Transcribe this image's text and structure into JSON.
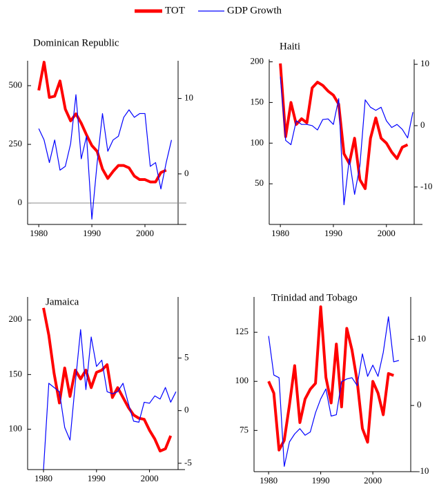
{
  "chart_data": [
    {
      "type": "line",
      "title": "Dominican Republic",
      "zero_line": true,
      "x": [
        1980,
        1981,
        1982,
        1983,
        1984,
        1985,
        1986,
        1987,
        1988,
        1989,
        1990,
        1991,
        1992,
        1993,
        1994,
        1995,
        1996,
        1997,
        1998,
        1999,
        2000,
        2001,
        2002,
        2003,
        2004,
        2005
      ],
      "series": [
        {
          "name": "TOT",
          "color": "#ff0000",
          "values": [
            480,
            600,
            450,
            455,
            520,
            400,
            350,
            380,
            340,
            290,
            245,
            220,
            145,
            105,
            135,
            160,
            160,
            150,
            115,
            100,
            100,
            90,
            90,
            130,
            140,
            null
          ]
        },
        {
          "name": "GDP Growth",
          "color": "#0000ff",
          "axis": "y2",
          "values": [
            6,
            4.5,
            1.5,
            4.5,
            0.5,
            1,
            4,
            10.5,
            2,
            5,
            -6,
            1.5,
            8,
            3,
            4.5,
            5,
            7.5,
            8.5,
            7.5,
            8,
            8,
            1,
            1.5,
            -2,
            1.5,
            4.5
          ]
        }
      ],
      "xlim": [
        1977.9,
        2007.8
      ],
      "xticks": [
        1980,
        1990,
        2000
      ],
      "ylim": [
        -91,
        606
      ],
      "yticks": [
        0,
        250,
        500
      ],
      "y2lim": [
        -6.7,
        15
      ],
      "y2ticks": [
        0,
        10
      ]
    },
    {
      "type": "line",
      "title": "Haiti",
      "x": [
        1980,
        1981,
        1982,
        1983,
        1984,
        1985,
        1986,
        1987,
        1988,
        1989,
        1990,
        1991,
        1992,
        1993,
        1994,
        1995,
        1996,
        1997,
        1998,
        1999,
        2000,
        2001,
        2002,
        2003,
        2004,
        2005
      ],
      "series": [
        {
          "color": "#ff0000",
          "values": [
            198,
            108,
            150,
            123,
            130,
            125,
            168,
            175,
            171,
            164,
            159,
            148,
            87,
            75,
            106,
            55,
            44,
            106,
            131,
            106,
            100,
            89,
            81,
            95,
            98,
            null
          ]
        },
        {
          "color": "#0000ff",
          "axis": "y2",
          "values": [
            8,
            -2.4,
            -3.1,
            0.8,
            0.2,
            0.2,
            0,
            -0.7,
            1,
            1.1,
            0.2,
            4.4,
            -12.9,
            -5.4,
            -11.2,
            -6.5,
            4.2,
            3,
            2.5,
            3,
            0.8,
            -0.3,
            0.2,
            -0.6,
            -2,
            2.2
          ]
        }
      ],
      "xlim": [
        1977.9,
        2006.8
      ],
      "xticks": [
        1980,
        1990,
        2000
      ],
      "ylim": [
        0,
        203
      ],
      "yticks": [
        50,
        100,
        150,
        200
      ],
      "y2lim": [
        -16.1,
        10.8
      ],
      "y2ticks": [
        -10,
        0,
        10
      ]
    },
    {
      "type": "line",
      "title": "Jamaica",
      "x": [
        1980,
        1981,
        1982,
        1983,
        1984,
        1985,
        1986,
        1987,
        1988,
        1989,
        1990,
        1991,
        1992,
        1993,
        1994,
        1995,
        1996,
        1997,
        1998,
        1999,
        2000,
        2001,
        2002,
        2003,
        2004,
        2005
      ],
      "series": [
        {
          "color": "#ff0000",
          "values": [
            211,
            186,
            151,
            124,
            156,
            130,
            154,
            146,
            154,
            138,
            152,
            154,
            159,
            129,
            138,
            129,
            120,
            113,
            110,
            109,
            99,
            91,
            80,
            82,
            94,
            null
          ]
        },
        {
          "color": "#0000ff",
          "axis": "y2",
          "values": [
            -5.6,
            2.6,
            2.2,
            1.8,
            -1.6,
            -2.8,
            2.6,
            7.7,
            2,
            7,
            4.2,
            4.8,
            1.8,
            1.6,
            1.8,
            2.6,
            0.7,
            -1,
            -1.1,
            0.8,
            0.7,
            1.4,
            1.1,
            2.2,
            0.8,
            1.8
          ]
        }
      ],
      "xlim": [
        1977,
        2006.7
      ],
      "xticks": [
        1980,
        1990,
        2000
      ],
      "ylim": [
        63,
        221
      ],
      "yticks": [
        100,
        150,
        200
      ],
      "y2lim": [
        -5.6,
        10.8
      ],
      "y2ticks": [
        -5,
        0,
        5
      ]
    },
    {
      "type": "line",
      "title": "Trinidad and Tobago",
      "x": [
        1980,
        1981,
        1982,
        1983,
        1984,
        1985,
        1986,
        1987,
        1988,
        1989,
        1990,
        1991,
        1992,
        1993,
        1994,
        1995,
        1996,
        1997,
        1998,
        1999,
        2000,
        2001,
        2002,
        2003,
        2004,
        2005
      ],
      "series": [
        {
          "color": "#ff0000",
          "values": [
            100,
            94,
            65,
            70,
            88,
            108,
            79,
            91,
            96,
            99,
            138,
            102,
            89,
            119,
            87,
            127,
            116,
            100,
            76,
            69,
            100,
            94,
            83,
            104,
            103,
            null
          ]
        },
        {
          "color": "#0000ff",
          "axis": "y2",
          "values": [
            10.5,
            4.6,
            4.2,
            -9.2,
            -5.5,
            -4.3,
            -3.5,
            -4.5,
            -4,
            -1.1,
            1,
            2.5,
            -1.6,
            -1.4,
            3.6,
            4,
            4.2,
            3,
            7.8,
            4.4,
            6.1,
            4.4,
            8,
            13.4,
            6.6,
            6.8
          ]
        }
      ],
      "xlim": [
        1977.2,
        2008.6
      ],
      "xticks": [
        1980,
        1990,
        2000
      ],
      "ylim": [
        54,
        143
      ],
      "yticks": [
        75,
        100,
        125
      ],
      "y2lim": [
        -10,
        16.4
      ],
      "y2ticks": [
        -10,
        0,
        10
      ]
    }
  ]
}
